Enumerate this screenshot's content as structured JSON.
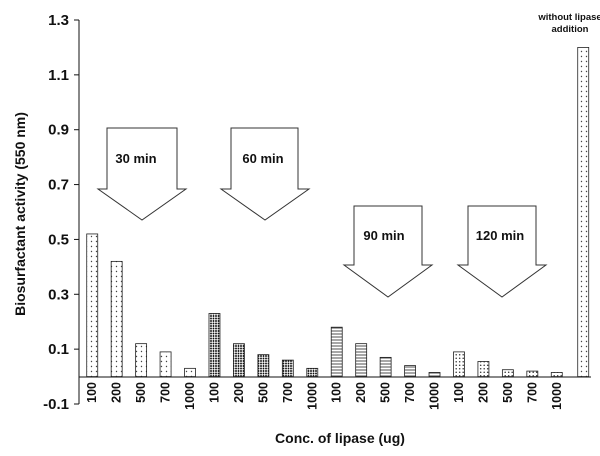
{
  "chart_data": {
    "type": "bar",
    "xlabel": "Conc. of lipase (ug)",
    "ylabel": "Biosurfactant activity (550 nm)",
    "ylim": [
      -0.1,
      1.3
    ],
    "yticks": [
      "-0.1",
      "0.1",
      "0.3",
      "0.5",
      "0.7",
      "0.9",
      "1.1",
      "1.3"
    ],
    "ytick_values": [
      -0.1,
      0.1,
      0.3,
      0.5,
      0.7,
      0.9,
      1.1,
      1.3
    ],
    "grid": false,
    "groups": [
      {
        "label": "30 min",
        "pattern": "dots-sparse",
        "categories": [
          "100",
          "200",
          "500",
          "700",
          "1000"
        ],
        "values": [
          0.52,
          0.42,
          0.12,
          0.09,
          0.03
        ]
      },
      {
        "label": "60 min",
        "pattern": "dots-dense",
        "categories": [
          "100",
          "200",
          "500",
          "700",
          "1000"
        ],
        "values": [
          0.23,
          0.12,
          0.08,
          0.06,
          0.03
        ]
      },
      {
        "label": "90 min",
        "pattern": "horizontal-lines",
        "categories": [
          "100",
          "200",
          "500",
          "700",
          "1000"
        ],
        "values": [
          0.18,
          0.12,
          0.07,
          0.04,
          0.015
        ]
      },
      {
        "label": "120 min",
        "pattern": "dots-medium",
        "categories": [
          "100",
          "200",
          "500",
          "700",
          "1000"
        ],
        "values": [
          0.09,
          0.055,
          0.025,
          0.02,
          0.015
        ]
      }
    ],
    "control": {
      "label_line1": "without lipase",
      "label_line2": "addition",
      "value": 1.2,
      "pattern": "dots-sparse"
    }
  }
}
